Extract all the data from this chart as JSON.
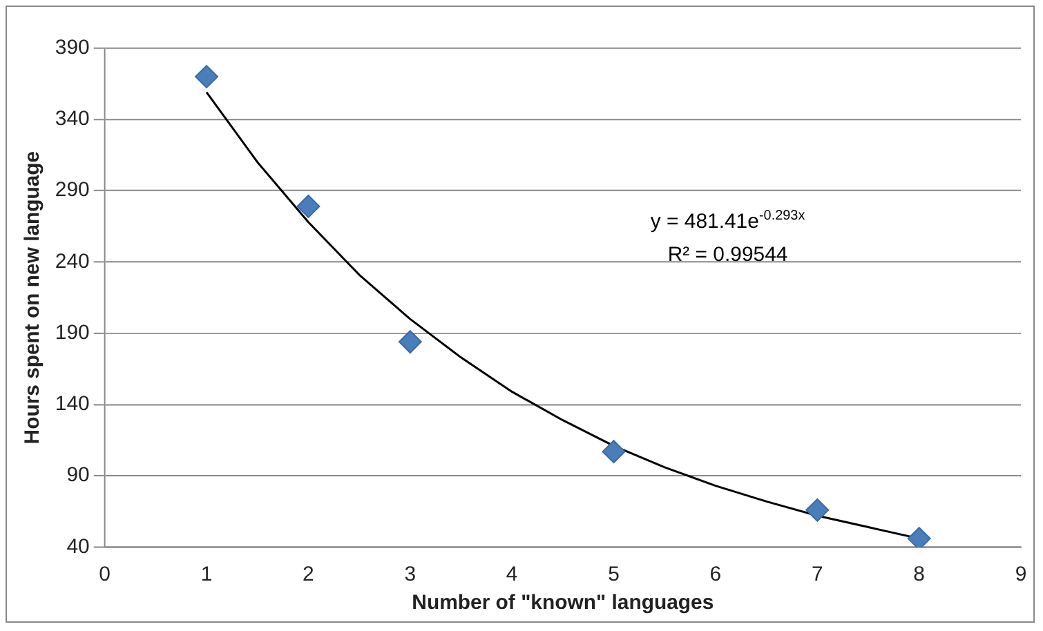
{
  "chart_data": {
    "type": "scatter",
    "xlabel": "Number of \"known\" languages",
    "ylabel": "Hours spent on new language",
    "x": [
      1,
      2,
      3,
      5,
      7,
      8
    ],
    "series": [
      {
        "color": "#4a7ebb",
        "marker": "diamond",
        "values": [
          370,
          279,
          184,
          107,
          66,
          46
        ]
      },
      {
        "type": "line",
        "color": "#000000",
        "marker": "none",
        "x": [
          1,
          1.5,
          2,
          2.5,
          3,
          3.5,
          4,
          4.5,
          5,
          5.5,
          6,
          6.5,
          7,
          7.5,
          8
        ],
        "values": [
          359,
          310,
          268,
          231,
          200,
          173,
          149,
          129,
          111,
          96,
          83,
          72,
          62,
          54,
          46
        ]
      }
    ],
    "annotations": [
      "y = 481.41e$^{-0.293x}$",
      "R² = 0.99544"
    ],
    "xlim": [
      0,
      9
    ],
    "xticks": [
      0,
      1,
      2,
      3,
      4,
      5,
      6,
      7,
      8,
      9
    ],
    "ylim": [
      40,
      390
    ],
    "yticks": [
      40,
      90,
      140,
      190,
      240,
      290,
      340,
      390
    ],
    "grid": "y",
    "legend": false
  }
}
